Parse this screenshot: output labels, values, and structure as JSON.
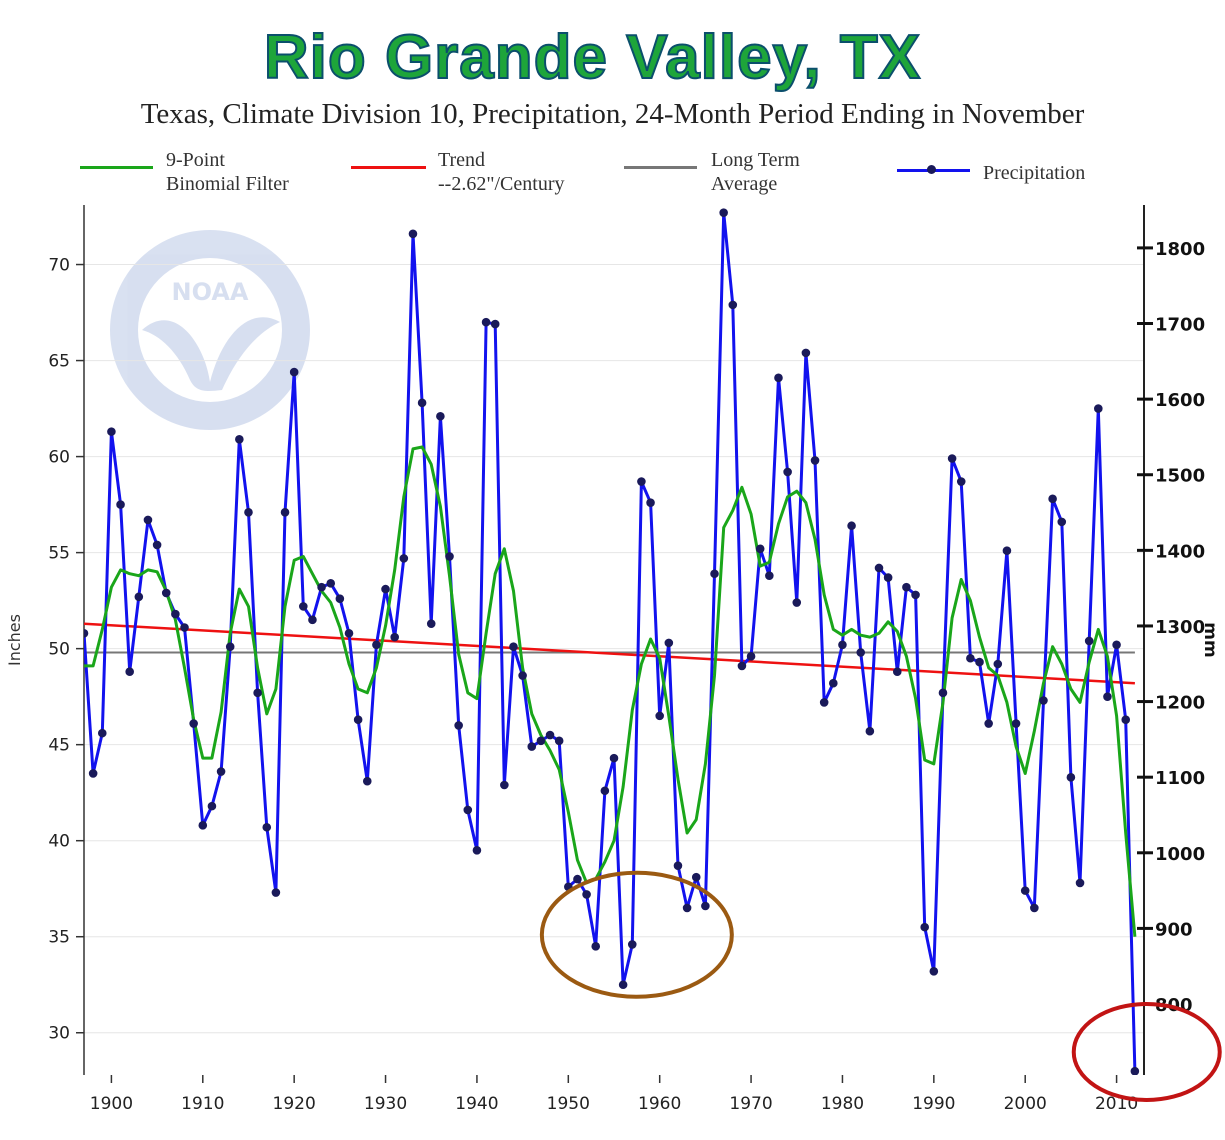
{
  "headline": "Rio Grande Valley, TX",
  "subtitle": "Texas, Climate Division 10, Precipitation, 24-Month Period Ending in November",
  "legend": {
    "binomial": {
      "line1": "9-Point",
      "line2": "Binomial Filter",
      "color": "#1aa61a"
    },
    "trend": {
      "line1": "Trend",
      "line2": "--2.62\"/Century",
      "color": "#ee1111"
    },
    "average": {
      "line1": "Long Term",
      "line2": "Average",
      "color": "#777777"
    },
    "precip": {
      "line1": "Precipitation",
      "color": "#1212ee"
    }
  },
  "chart_data": {
    "type": "line",
    "ylabel": "Inches",
    "y2label": "mm",
    "x_ticks": [
      1900,
      1910,
      1920,
      1930,
      1940,
      1950,
      1960,
      1970,
      1980,
      1990,
      2000,
      2010
    ],
    "y_ticks": [
      30,
      35,
      40,
      45,
      50,
      55,
      60,
      65,
      70
    ],
    "y2_ticks": [
      800,
      900,
      1000,
      1100,
      1200,
      1300,
      1400,
      1500,
      1600,
      1700,
      1800
    ],
    "xlim": [
      1897,
      2013
    ],
    "ylim": [
      27.8,
      73.1
    ],
    "grid": true,
    "series": [
      {
        "name": "Precipitation",
        "color": "#1212ee",
        "x": [
          1897,
          1898,
          1899,
          1900,
          1901,
          1902,
          1903,
          1904,
          1905,
          1906,
          1907,
          1908,
          1909,
          1910,
          1911,
          1912,
          1913,
          1914,
          1915,
          1916,
          1917,
          1918,
          1919,
          1920,
          1921,
          1922,
          1923,
          1924,
          1925,
          1926,
          1927,
          1928,
          1929,
          1930,
          1931,
          1932,
          1933,
          1934,
          1935,
          1936,
          1937,
          1938,
          1939,
          1940,
          1941,
          1942,
          1943,
          1944,
          1945,
          1946,
          1947,
          1948,
          1949,
          1950,
          1951,
          1952,
          1953,
          1954,
          1955,
          1956,
          1957,
          1958,
          1959,
          1960,
          1961,
          1962,
          1963,
          1964,
          1965,
          1966,
          1967,
          1968,
          1969,
          1970,
          1971,
          1972,
          1973,
          1974,
          1975,
          1976,
          1977,
          1978,
          1979,
          1980,
          1981,
          1982,
          1983,
          1984,
          1985,
          1986,
          1987,
          1988,
          1989,
          1990,
          1991,
          1992,
          1993,
          1994,
          1995,
          1996,
          1997,
          1998,
          1999,
          2000,
          2001,
          2002,
          2003,
          2004,
          2005,
          2006,
          2007,
          2008,
          2009,
          2010,
          2011,
          2012
        ],
        "values": [
          50.8,
          43.5,
          45.6,
          61.3,
          57.5,
          48.8,
          52.7,
          56.7,
          55.4,
          52.9,
          51.8,
          51.1,
          46.1,
          40.8,
          41.8,
          43.6,
          50.1,
          60.9,
          57.1,
          47.7,
          40.7,
          37.3,
          57.1,
          64.4,
          52.2,
          51.5,
          53.2,
          53.4,
          52.6,
          50.8,
          46.3,
          43.1,
          50.2,
          53.1,
          50.6,
          54.7,
          71.6,
          62.8,
          51.3,
          62.1,
          54.8,
          46.0,
          41.6,
          39.5,
          67.0,
          66.9,
          42.9,
          50.1,
          48.6,
          44.9,
          45.2,
          45.5,
          45.2,
          37.6,
          38.0,
          37.2,
          34.5,
          42.6,
          44.3,
          32.5,
          34.6,
          58.7,
          57.6,
          46.5,
          50.3,
          38.7,
          36.5,
          38.1,
          36.6,
          53.9,
          72.7,
          67.9,
          49.1,
          49.6,
          55.2,
          53.8,
          64.1,
          59.2,
          52.4,
          65.4,
          59.8,
          47.2,
          48.2,
          50.2,
          56.4,
          49.8,
          45.7,
          54.2,
          53.7,
          48.8,
          53.2,
          52.8,
          35.5,
          33.2,
          47.7,
          59.9,
          58.7,
          49.5,
          49.3,
          46.1,
          49.2,
          55.1,
          46.1,
          37.4,
          36.5,
          47.3,
          57.8,
          56.6,
          43.3,
          37.8,
          50.4,
          62.5,
          47.5,
          50.2,
          46.3,
          28.0
        ]
      },
      {
        "name": "9-Point Binomial Filter",
        "color": "#1aa61a",
        "x": [
          1897,
          1898,
          1899,
          1900,
          1901,
          1902,
          1903,
          1904,
          1905,
          1906,
          1907,
          1908,
          1909,
          1910,
          1911,
          1912,
          1913,
          1914,
          1915,
          1916,
          1917,
          1918,
          1919,
          1920,
          1921,
          1922,
          1923,
          1924,
          1925,
          1926,
          1927,
          1928,
          1929,
          1930,
          1931,
          1932,
          1933,
          1934,
          1935,
          1936,
          1937,
          1938,
          1939,
          1940,
          1941,
          1942,
          1943,
          1944,
          1945,
          1946,
          1947,
          1948,
          1949,
          1950,
          1951,
          1952,
          1953,
          1954,
          1955,
          1956,
          1957,
          1958,
          1959,
          1960,
          1961,
          1962,
          1963,
          1964,
          1965,
          1966,
          1967,
          1968,
          1969,
          1970,
          1971,
          1972,
          1973,
          1974,
          1975,
          1976,
          1977,
          1978,
          1979,
          1980,
          1981,
          1982,
          1983,
          1984,
          1985,
          1986,
          1987,
          1988,
          1989,
          1990,
          1991,
          1992,
          1993,
          1994,
          1995,
          1996,
          1997,
          1998,
          1999,
          2000,
          2001,
          2002,
          2003,
          2004,
          2005,
          2006,
          2007,
          2008,
          2009,
          2010,
          2011,
          2012
        ],
        "values": [
          49.1,
          49.1,
          51.0,
          53.2,
          54.1,
          53.9,
          53.8,
          54.1,
          54.0,
          53.0,
          51.5,
          49.0,
          46.3,
          44.3,
          44.3,
          46.7,
          50.8,
          53.1,
          52.2,
          49.0,
          46.6,
          47.9,
          52.2,
          54.6,
          54.8,
          53.9,
          53.0,
          52.4,
          51.1,
          49.2,
          47.9,
          47.7,
          49.0,
          51.2,
          54.1,
          57.9,
          60.4,
          60.5,
          59.6,
          57.4,
          53.8,
          49.7,
          47.7,
          47.4,
          50.8,
          53.9,
          55.2,
          53.0,
          49.0,
          46.6,
          45.5,
          44.7,
          43.7,
          41.5,
          39.0,
          37.8,
          38.0,
          38.9,
          40.0,
          42.8,
          46.8,
          49.2,
          50.5,
          49.5,
          46.5,
          43.2,
          40.4,
          41.1,
          44.0,
          48.6,
          56.3,
          57.2,
          58.4,
          57.0,
          54.3,
          54.5,
          56.5,
          57.9,
          58.2,
          57.6,
          55.7,
          52.8,
          51.0,
          50.7,
          51.0,
          50.7,
          50.6,
          50.8,
          51.4,
          50.9,
          49.6,
          47.4,
          44.2,
          44.0,
          47.2,
          51.6,
          53.6,
          52.5,
          50.6,
          49.0,
          48.6,
          47.2,
          44.9,
          43.5,
          45.7,
          48.2,
          50.1,
          49.2,
          47.9,
          47.2,
          49.3,
          51.0,
          49.6,
          46.5,
          40.4,
          35.0
        ]
      },
      {
        "name": "Trend",
        "color": "#ee1111",
        "x": [
          1897,
          2012
        ],
        "values": [
          51.3,
          48.2
        ]
      },
      {
        "name": "Long Term Average",
        "color": "#777777",
        "x": [
          1897,
          2012
        ],
        "values": [
          49.8,
          49.8
        ]
      }
    ],
    "annotations": [
      {
        "shape": "ellipse",
        "color": "#9b5a12",
        "center_x": 1957.5,
        "center_y": 35.1
      },
      {
        "shape": "ellipse",
        "color": "#c21414",
        "center_x": 2013.3,
        "center_y": 29.0
      }
    ]
  }
}
